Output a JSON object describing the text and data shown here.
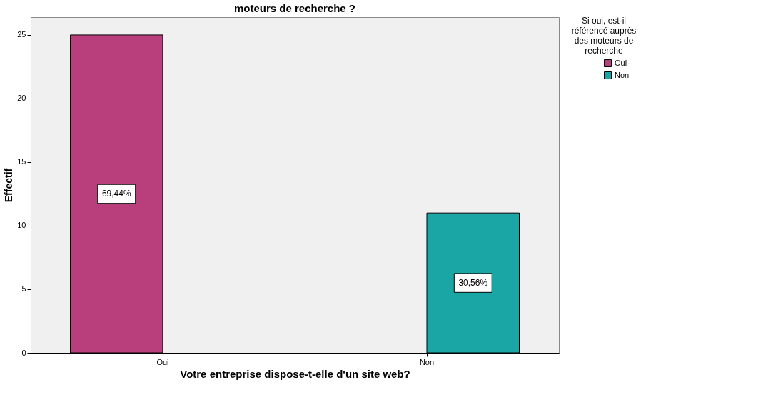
{
  "chart_data": {
    "type": "bar",
    "title": "moteurs de recherche ?",
    "xlabel": "Votre entreprise dispose-t-elle d'un site web?",
    "ylabel": "Effectif",
    "legend_title": "Si oui, est-il référencé auprès des moteurs de recherche",
    "categories": [
      "Oui",
      "Non"
    ],
    "series": [
      {
        "name": "Oui",
        "color": "#b83f7b",
        "values": [
          25,
          null
        ]
      },
      {
        "name": "Non",
        "color": "#1ba6a6",
        "values": [
          null,
          11
        ]
      }
    ],
    "annotations": [
      "69,44%",
      "30,56%"
    ],
    "ylim": [
      0,
      26.4
    ],
    "yticks": [
      0,
      5,
      10,
      15,
      20,
      25
    ],
    "grid": false,
    "legend": "right"
  }
}
